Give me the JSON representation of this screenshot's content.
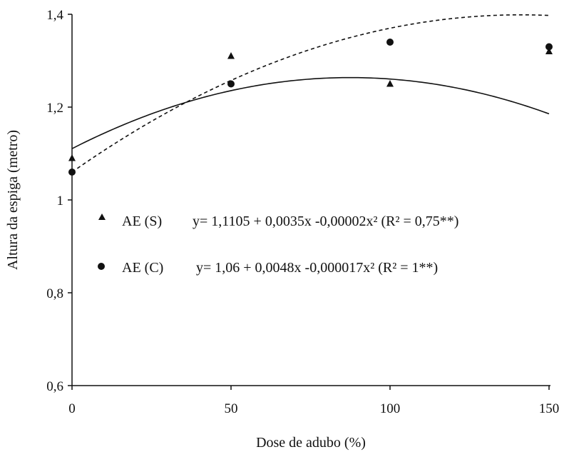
{
  "chart_data": {
    "type": "scatter",
    "xlabel": "Dose de adubo (%)",
    "ylabel": "Altura da espiga (metro)",
    "xlim": [
      0,
      150
    ],
    "ylim": [
      0.6,
      1.4
    ],
    "x_ticks": [
      "0",
      "50",
      "100",
      "150"
    ],
    "y_ticks": [
      "0,6",
      "0,8",
      "1",
      "1,2",
      "1,4"
    ],
    "grid": false,
    "legend_position": "center-left",
    "series": [
      {
        "name": "AE (S)",
        "marker": "triangle",
        "line_style": "solid",
        "x": [
          0,
          50,
          100,
          150
        ],
        "y": [
          1.09,
          1.31,
          1.25,
          1.32
        ],
        "equation": "y= 1,1105 + 0,0035x -0,00002x² (R² = 0,75**)",
        "coefficients": [
          1.1105,
          0.0035,
          -2e-05
        ]
      },
      {
        "name": "AE (C)",
        "marker": "circle",
        "line_style": "dashed",
        "x": [
          0,
          50,
          100,
          150
        ],
        "y": [
          1.06,
          1.25,
          1.34,
          1.33
        ],
        "equation": "y= 1,06 + 0,0048x -0,000017x² (R² = 1**)",
        "coefficients": [
          1.06,
          0.0048,
          -1.7e-05
        ]
      }
    ]
  }
}
